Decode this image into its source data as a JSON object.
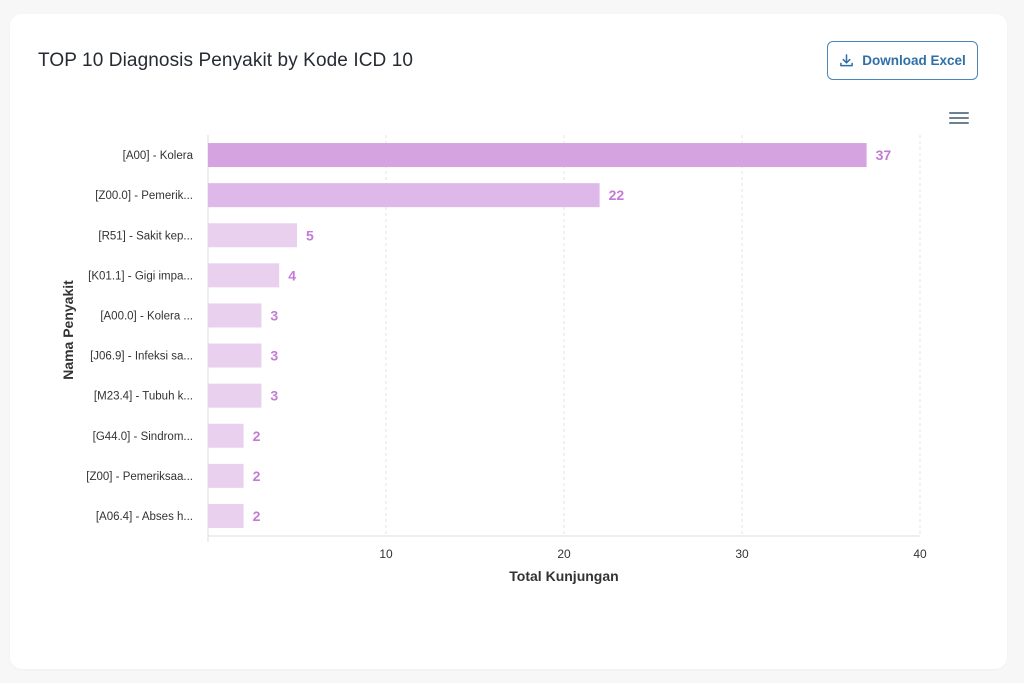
{
  "header": {
    "title": "TOP 10 Diagnosis Penyakit by Kode ICD 10",
    "download_label": "Download Excel"
  },
  "icons": {
    "download": "download-icon",
    "menu": "hamburger-menu-icon"
  },
  "colors": {
    "bar_primary": "#d5a4e0",
    "bar_secondary": "#deb8e8",
    "bar_light": "#e8d0ee",
    "data_label": "#c47ad6",
    "button_accent": "#2f6fa6"
  },
  "chart_data": {
    "type": "bar",
    "orientation": "horizontal",
    "title": "TOP 10 Diagnosis Penyakit by Kode ICD 10",
    "xlabel": "Total Kunjungan",
    "ylabel": "Nama Penyakit",
    "categories": [
      "[A00] - Kolera",
      "[Z00.0] - Pemerik...",
      "[R51] - Sakit kep...",
      "[K01.1] - Gigi impa...",
      "[A00.0] - Kolera ...",
      "[J06.9] - Infeksi sa...",
      "[M23.4] - Tubuh k...",
      "[G44.0] - Sindrom...",
      "[Z00] - Pemeriksaa...",
      "[A06.4] - Abses h..."
    ],
    "values": [
      37,
      22,
      5,
      4,
      3,
      3,
      3,
      2,
      2,
      2
    ],
    "xlim": [
      0,
      40
    ],
    "xticks": [
      10,
      20,
      30,
      40
    ],
    "grid": "vertical dashed",
    "data_labels": true
  }
}
